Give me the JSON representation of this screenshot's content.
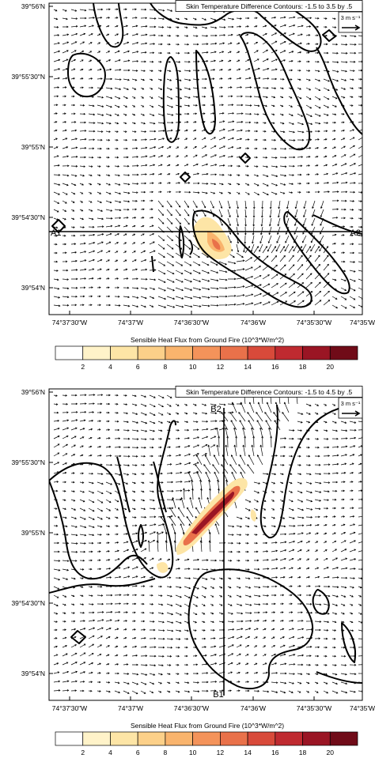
{
  "panels": [
    {
      "title": "Skin Temperature Difference Contours: -1.5 to 3.5 by .5",
      "reference_vector": "3 m s⁻¹",
      "y_labels": [
        "39°56'N",
        "39°55'30\"N",
        "39°55'N",
        "39°54'30\"N",
        "39°54'N"
      ],
      "x_labels": [
        "74°37'30\"W",
        "74°37'W",
        "74°36'30\"W",
        "74°36'W",
        "74°35'30\"W",
        "74°35'W"
      ],
      "section_labels": [
        "A1",
        "A2"
      ],
      "colorbar": {
        "title": "Sensible Heat Flux from Ground Fire  (10^3*W/m^2)",
        "levels": [
          2,
          4,
          6,
          8,
          10,
          12,
          14,
          16,
          18,
          20
        ],
        "colors": [
          "#ffffff",
          "#fff3c9",
          "#fde5a6",
          "#fcd089",
          "#f9b46d",
          "#f4935a",
          "#e9714a",
          "#d84a3a",
          "#bf2a30",
          "#9a1524",
          "#700b18"
        ]
      }
    },
    {
      "title": "Skin Temperature Difference Contours: -1.5 to 4.5 by .5",
      "reference_vector": "3 m s⁻¹",
      "y_labels": [
        "39°56'N",
        "39°55'30\"N",
        "39°55'N",
        "39°54'30\"N",
        "39°54'N"
      ],
      "x_labels": [
        "74°37'30\"W",
        "74°37'W",
        "74°36'30\"W",
        "74°36'W",
        "74°35'30\"W",
        "74°35'W"
      ],
      "section_labels": [
        "B2",
        "B1"
      ],
      "colorbar": {
        "title": "Sensible Heat Flux from Ground Fire  (10^3*W/m^2)",
        "levels": [
          2,
          4,
          6,
          8,
          10,
          12,
          14,
          16,
          18,
          20
        ],
        "colors": [
          "#ffffff",
          "#fff3c9",
          "#fde5a6",
          "#fcd089",
          "#f9b46d",
          "#f4935a",
          "#e9714a",
          "#d84a3a",
          "#bf2a30",
          "#9a1524",
          "#700b18"
        ]
      }
    }
  ]
}
